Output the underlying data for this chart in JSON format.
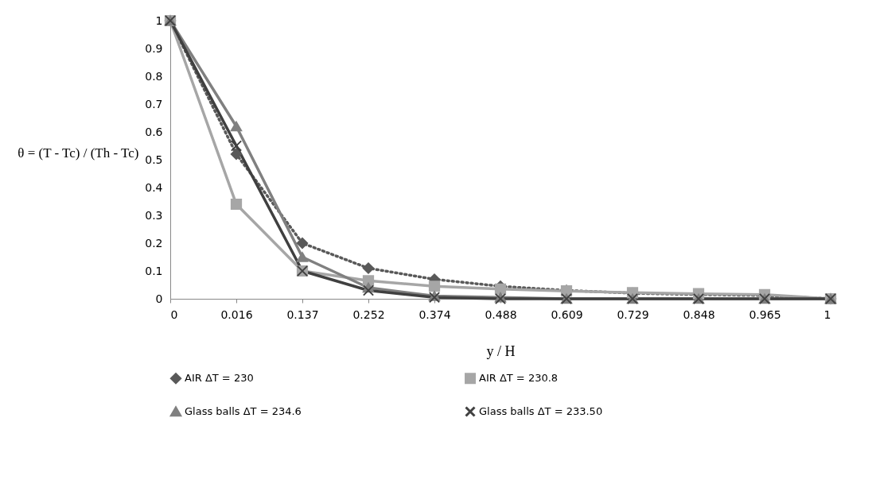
{
  "chart_data": {
    "type": "line",
    "categories": [
      "0",
      "0.016",
      "0.137",
      "0.252",
      "0.374",
      "0.488",
      "0.609",
      "0.729",
      "0.848",
      "0.965",
      "1"
    ],
    "xlabel": "y / H",
    "ylabel": "θ = (T - Tc) / (Th - Tc)",
    "series": [
      {
        "name": "AIR ΔT = 230",
        "color": "#595959",
        "marker": "diamond",
        "line_style": "dotted",
        "values": [
          1,
          0.52,
          0.2,
          0.11,
          0.07,
          0.045,
          0.03,
          0.02,
          0.015,
          0.012,
          0
        ]
      },
      {
        "name": "AIR ΔT = 230.8",
        "color": "#a6a6a6",
        "marker": "square",
        "line_style": "solid",
        "values": [
          1,
          0.34,
          0.1,
          0.065,
          0.045,
          0.035,
          0.028,
          0.022,
          0.018,
          0.015,
          0
        ]
      },
      {
        "name": "Glass balls ΔT = 234.6",
        "color": "#808080",
        "marker": "triangle",
        "line_style": "solid",
        "values": [
          1,
          0.62,
          0.15,
          0.04,
          0.01,
          0.005,
          0,
          0,
          0,
          0,
          0
        ]
      },
      {
        "name": "Glass balls ΔT = 233.50",
        "color": "#404040",
        "marker": "cross",
        "line_style": "solid",
        "values": [
          1,
          0.55,
          0.1,
          0.03,
          0.005,
          0,
          0,
          0,
          0,
          0,
          0
        ]
      }
    ],
    "ylim": [
      0,
      1
    ],
    "yticks": [
      0,
      0.1,
      0.2,
      0.3,
      0.4,
      0.5,
      0.6,
      0.7,
      0.8,
      0.9,
      1
    ],
    "grid": false,
    "legend": "bottom"
  }
}
